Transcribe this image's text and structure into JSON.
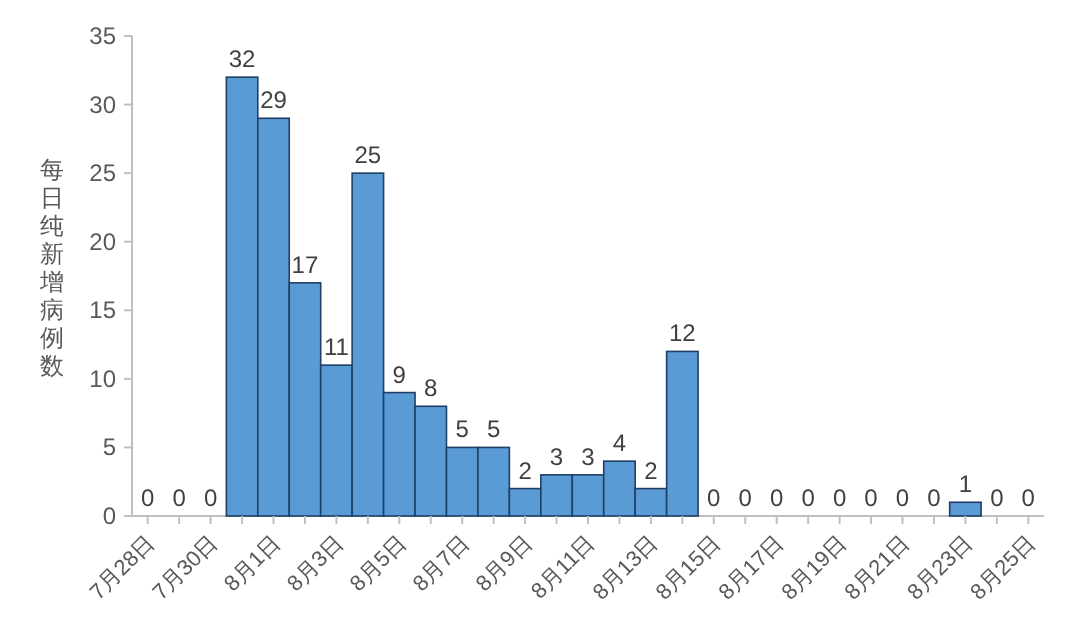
{
  "chart_data": {
    "type": "bar",
    "ylabel": "每日纯新增病例数",
    "categories": [
      "7月28日",
      null,
      "7月30日",
      null,
      "8月1日",
      null,
      "8月3日",
      null,
      "8月5日",
      null,
      "8月7日",
      null,
      "8月9日",
      null,
      "8月11日",
      null,
      "8月13日",
      null,
      "8月15日",
      null,
      "8月17日",
      null,
      "8月19日",
      null,
      "8月21日",
      null,
      "8月23日",
      null,
      "8月25日"
    ],
    "values": [
      0,
      0,
      0,
      32,
      29,
      17,
      11,
      25,
      9,
      8,
      5,
      5,
      2,
      3,
      3,
      4,
      2,
      12,
      0,
      0,
      0,
      0,
      0,
      0,
      0,
      0,
      1,
      0,
      0
    ],
    "color": "#5b9bd5",
    "ylim": [
      0,
      35
    ],
    "yticks": [
      0,
      5,
      10,
      15,
      20,
      25,
      30,
      35
    ],
    "data_labels": true
  }
}
